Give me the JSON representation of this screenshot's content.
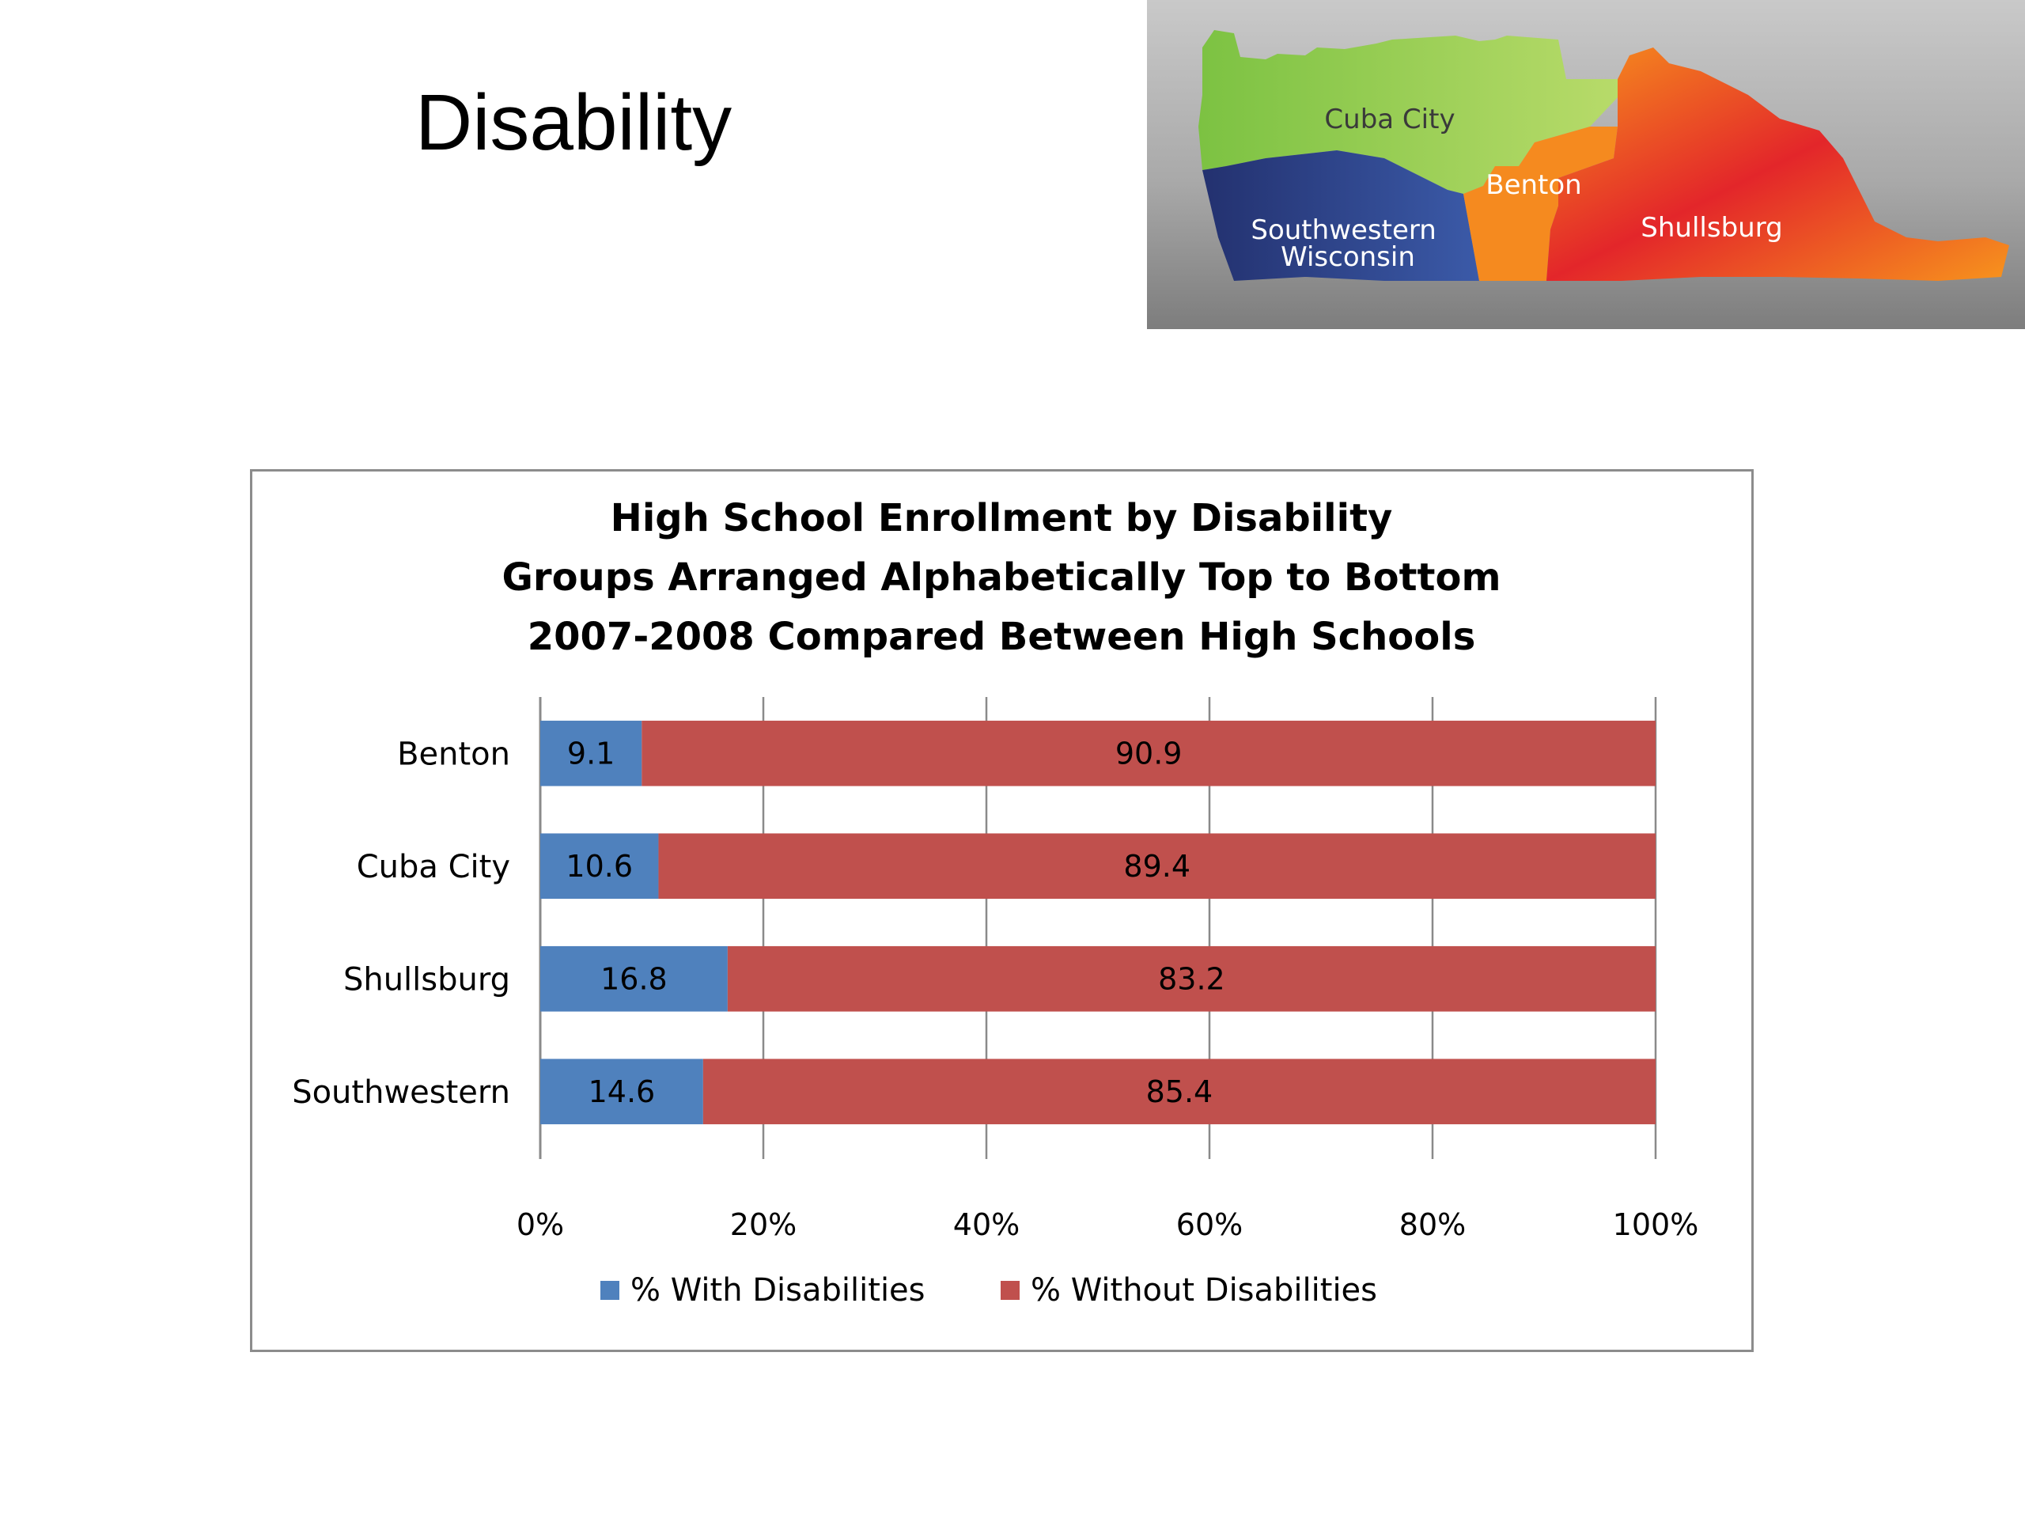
{
  "slide": {
    "title": "Disability"
  },
  "map": {
    "regions": [
      {
        "name": "Cuba City",
        "color": "#8cc63f"
      },
      {
        "name": "Benton",
        "color": "#f7941d"
      },
      {
        "name": "Southwestern\nWisconsin",
        "color": "#2e3f8f"
      },
      {
        "name": "Shullsburg",
        "color": "#e8412c"
      }
    ]
  },
  "chart_data": {
    "type": "bar",
    "orientation": "horizontal",
    "stacked": "percent",
    "title": [
      "High School Enrollment by Disability",
      "Groups Arranged Alphabetically Top to Bottom",
      "2007-2008 Compared Between High Schools"
    ],
    "categories": [
      "Benton",
      "Cuba City",
      "Shullsburg",
      "Southwestern"
    ],
    "series": [
      {
        "name": "% With Disabilities",
        "color": "#4f81bd",
        "values": [
          9.1,
          10.6,
          16.8,
          14.6
        ]
      },
      {
        "name": "% Without Disabilities",
        "color": "#c0504d",
        "values": [
          90.9,
          89.4,
          83.2,
          85.4
        ]
      }
    ],
    "xlim": [
      0,
      100
    ],
    "xticks": [
      "0%",
      "20%",
      "40%",
      "60%",
      "80%",
      "100%"
    ],
    "grid": true,
    "legend": "bottom"
  }
}
